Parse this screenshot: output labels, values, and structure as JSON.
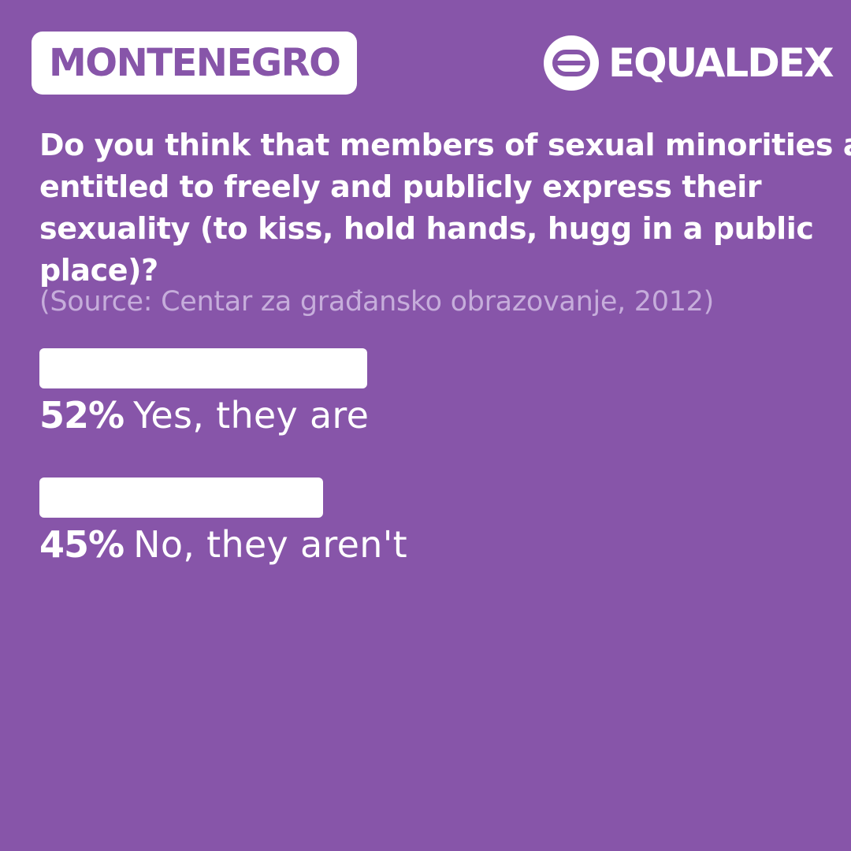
{
  "country": "MONTENEGRO",
  "brand": {
    "name": "EQUALDEX",
    "logo_icon": "equaldex-logo-icon"
  },
  "question": {
    "lines": [
      "Do you think that members of sexual minorities are",
      "entitled to freely and publicly express their",
      "sexuality (to kiss, hold hands, hugg in a public",
      "place)?"
    ],
    "source": "(Source: Centar za građansko obrazovanje, 2012)"
  },
  "colors": {
    "background": "#8755a9",
    "text": "#ffffff",
    "source_text": "#c6addb",
    "bars": "#ffffff"
  },
  "chart_data": {
    "type": "bar",
    "orientation": "horizontal",
    "categories": [
      "Yes, they are",
      "No, they aren't"
    ],
    "values": [
      52,
      45
    ],
    "value_labels": [
      "52%",
      "45%"
    ],
    "unit": "%",
    "xlim": [
      0,
      100
    ],
    "grid": false
  }
}
